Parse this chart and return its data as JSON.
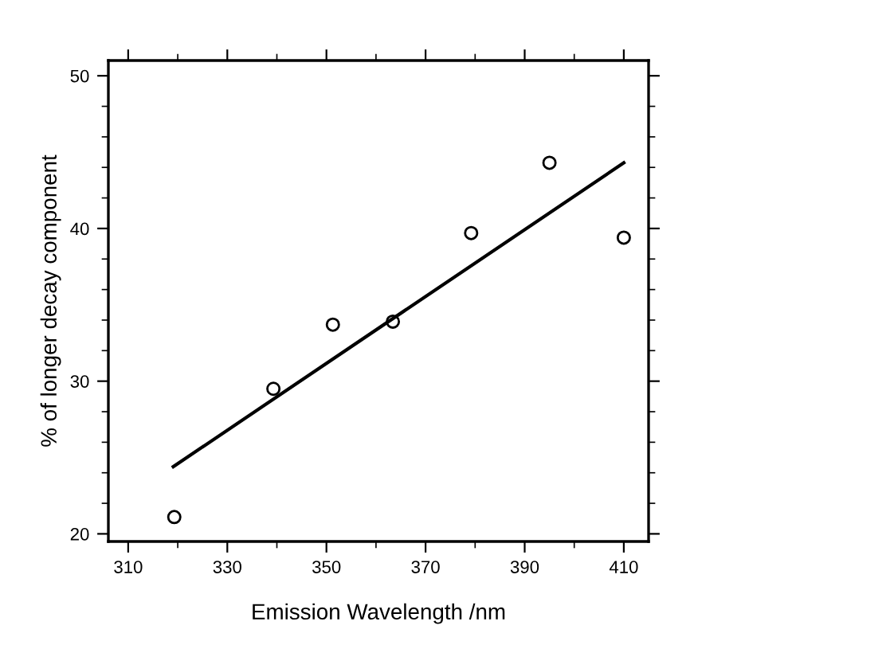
{
  "chart_data": {
    "type": "scatter",
    "xlabel": "Emission Wavelength /nm",
    "ylabel": "% of longer decay component",
    "xlim": [
      306,
      415
    ],
    "ylim": [
      19.5,
      51
    ],
    "xticks": [
      310,
      330,
      350,
      370,
      390,
      410
    ],
    "yticks": [
      20,
      30,
      40,
      50
    ],
    "grid": false,
    "legend": false,
    "series": [
      {
        "marker": "circle",
        "color": "#000000",
        "x": [
          319.3,
          339.3,
          351.3,
          363.4,
          379.2,
          395.0,
          410.0
        ],
        "values": [
          21.1,
          29.5,
          33.7,
          33.9,
          39.7,
          44.3,
          39.4
        ]
      },
      {
        "type": "line",
        "line_style": "solid",
        "color": "#000000",
        "x": [
          319.1,
          410.0
        ],
        "values": [
          24.4,
          44.3
        ]
      }
    ]
  }
}
